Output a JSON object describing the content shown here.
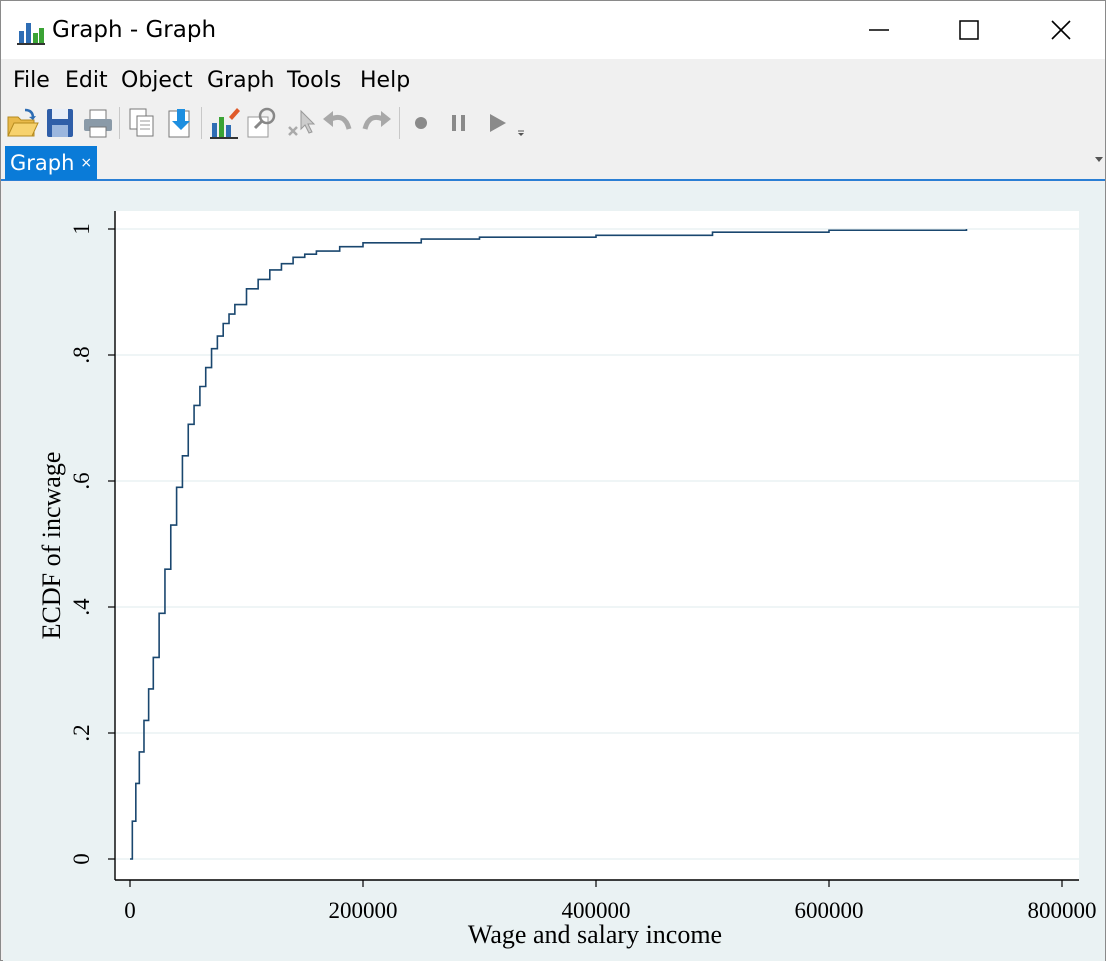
{
  "window": {
    "title": "Graph - Graph",
    "app_icon": "bar-chart-icon",
    "controls": [
      "minimize-icon",
      "maximize-icon",
      "close-icon"
    ]
  },
  "menu": {
    "items": [
      "File",
      "Edit",
      "Object",
      "Graph",
      "Tools",
      "Help"
    ]
  },
  "toolbar": {
    "buttons": [
      "open-icon",
      "save-icon",
      "print-icon",
      "copy-icon",
      "copy-to-icon",
      "graph-editor-icon",
      "zoom-icon",
      "pointer-icon",
      "undo-icon",
      "redo-icon",
      "record-icon",
      "pause-icon",
      "play-icon"
    ]
  },
  "tabs": [
    {
      "label": "Graph",
      "close": "×",
      "active": true
    }
  ],
  "colors": {
    "tab_active": "#0a7bd8",
    "graph_region": "#eaf2f3",
    "plot_region": "#ffffff",
    "line": "#1a476f",
    "grid": "#eaf2f3"
  },
  "chart_data": {
    "type": "line",
    "step": true,
    "title": "",
    "xlabel": "Wage and salary income",
    "ylabel": "ECDF of incwage",
    "xlim": [
      0,
      800000
    ],
    "ylim": [
      0,
      1
    ],
    "x_ticks": [
      0,
      200000,
      400000,
      600000,
      800000
    ],
    "x_tick_labels": [
      "0",
      "200000",
      "400000",
      "600000",
      "800000"
    ],
    "y_ticks": [
      0,
      0.2,
      0.4,
      0.6,
      0.8,
      1
    ],
    "y_tick_labels": [
      "0",
      ".2",
      ".4",
      ".6",
      ".8",
      "1"
    ],
    "grid": "horizontal",
    "legend": "none",
    "series": [
      {
        "x": [
          0,
          2000,
          5000,
          8000,
          12000,
          16000,
          20000,
          25000,
          30000,
          35000,
          40000,
          45000,
          50000,
          55000,
          60000,
          65000,
          70000,
          75000,
          80000,
          85000,
          90000,
          100000,
          110000,
          120000,
          130000,
          140000,
          150000,
          160000,
          180000,
          200000,
          250000,
          300000,
          400000,
          500000,
          600000,
          718000
        ],
        "y": [
          0,
          0.06,
          0.12,
          0.17,
          0.22,
          0.27,
          0.32,
          0.39,
          0.46,
          0.53,
          0.59,
          0.64,
          0.69,
          0.72,
          0.75,
          0.78,
          0.81,
          0.83,
          0.85,
          0.865,
          0.88,
          0.905,
          0.92,
          0.935,
          0.945,
          0.955,
          0.96,
          0.965,
          0.972,
          0.978,
          0.984,
          0.987,
          0.99,
          0.995,
          0.998,
          1.0
        ]
      }
    ]
  }
}
